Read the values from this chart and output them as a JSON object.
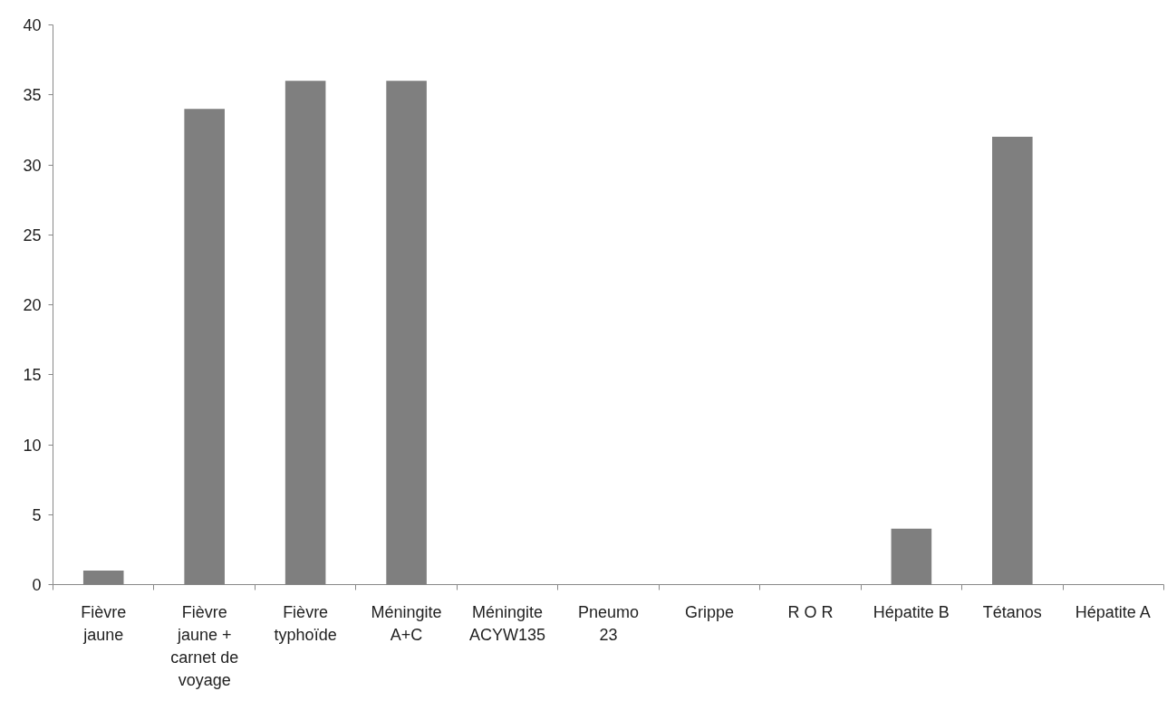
{
  "chart_data": {
    "type": "bar",
    "categories": [
      "Fièvre jaune",
      "Fièvre jaune + carnet de voyage",
      "Fièvre typhoïde",
      "Méningite A+C",
      "Méningite ACYW135",
      "Pneumo 23",
      "Grippe",
      "R O R",
      "Hépatite B",
      "Tétanos",
      "Hépatite A"
    ],
    "values": [
      1,
      34,
      36,
      36,
      0,
      0,
      0,
      0,
      4,
      32,
      0
    ],
    "color": "#7f7f7f",
    "ylim": [
      0,
      40
    ],
    "yticks": [
      0,
      5,
      10,
      15,
      20,
      25,
      30,
      35,
      40
    ],
    "grid": false
  }
}
